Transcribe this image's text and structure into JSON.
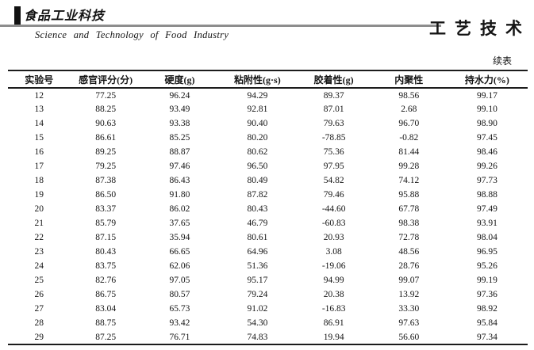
{
  "masthead": {
    "journal_logo_cn": "食品工业科技",
    "journal_name_en": "Science and Technology of Food Industry",
    "section_title": "工艺技术"
  },
  "table": {
    "continued_label": "续表",
    "columns": [
      "实验号",
      "感官评分(分)",
      "硬度(g)",
      "粘附性(g·s)",
      "胶着性(g)",
      "内聚性",
      "持水力(%)"
    ],
    "rows": [
      [
        "12",
        "77.25",
        "96.24",
        "94.29",
        "89.37",
        "98.56",
        "99.17"
      ],
      [
        "13",
        "88.25",
        "93.49",
        "92.81",
        "87.01",
        "2.68",
        "99.10"
      ],
      [
        "14",
        "90.63",
        "93.38",
        "90.40",
        "79.63",
        "96.70",
        "98.90"
      ],
      [
        "15",
        "86.61",
        "85.25",
        "80.20",
        "-78.85",
        "-0.82",
        "97.45"
      ],
      [
        "16",
        "89.25",
        "88.87",
        "80.62",
        "75.36",
        "81.44",
        "98.46"
      ],
      [
        "17",
        "79.25",
        "97.46",
        "96.50",
        "97.95",
        "99.28",
        "99.26"
      ],
      [
        "18",
        "87.38",
        "86.43",
        "80.49",
        "54.82",
        "74.12",
        "97.73"
      ],
      [
        "19",
        "86.50",
        "91.80",
        "87.82",
        "79.46",
        "95.88",
        "98.88"
      ],
      [
        "20",
        "83.37",
        "86.02",
        "80.43",
        "-44.60",
        "67.78",
        "97.49"
      ],
      [
        "21",
        "85.79",
        "37.65",
        "46.79",
        "-60.83",
        "98.38",
        "93.91"
      ],
      [
        "22",
        "87.15",
        "35.94",
        "80.61",
        "20.93",
        "72.78",
        "98.04"
      ],
      [
        "23",
        "80.43",
        "66.65",
        "64.96",
        "3.08",
        "48.56",
        "96.95"
      ],
      [
        "24",
        "83.75",
        "62.06",
        "51.36",
        "-19.06",
        "28.76",
        "95.26"
      ],
      [
        "25",
        "82.76",
        "97.05",
        "95.17",
        "94.99",
        "99.07",
        "99.19"
      ],
      [
        "26",
        "86.75",
        "80.57",
        "79.24",
        "20.38",
        "13.92",
        "97.36"
      ],
      [
        "27",
        "83.04",
        "65.73",
        "91.02",
        "-16.83",
        "33.30",
        "98.92"
      ],
      [
        "28",
        "88.75",
        "93.42",
        "54.30",
        "86.91",
        "97.63",
        "95.84"
      ],
      [
        "29",
        "87.25",
        "76.71",
        "74.83",
        "19.94",
        "56.60",
        "97.34"
      ]
    ]
  },
  "colors": {
    "rule_gray": "#8d8d8d",
    "ink_black": "#141414"
  }
}
